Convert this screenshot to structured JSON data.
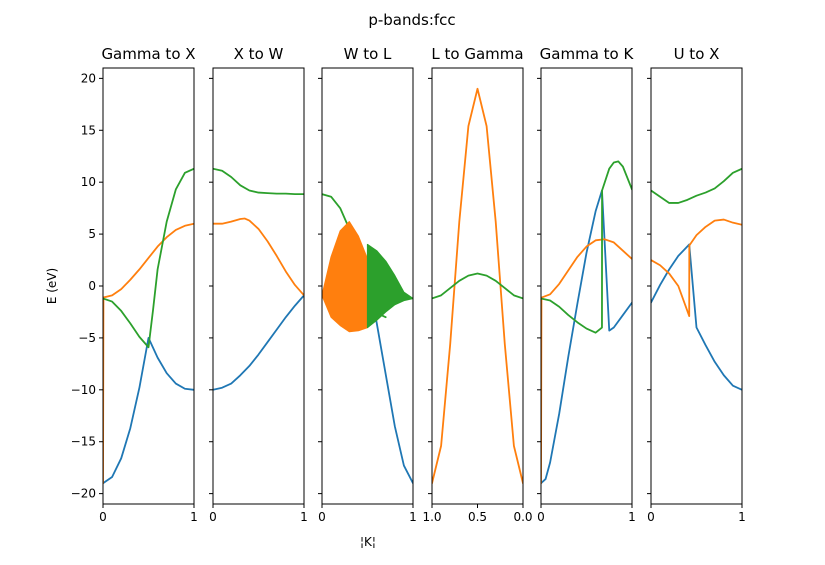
{
  "figure": {
    "suptitle": "p-bands:fcc",
    "xlabel": "¦K¦",
    "ylabel": "E (eV)"
  },
  "colors": {
    "band1": "#1f77b4",
    "band2": "#ff7f0e",
    "band3": "#2ca02c",
    "axes": "#000000",
    "background": "#ffffff"
  },
  "chart_data": [
    {
      "type": "line",
      "title": "Gamma to X",
      "xlim": [
        0,
        1
      ],
      "ylim": [
        -21,
        21
      ],
      "xticks": [
        0,
        1
      ],
      "yticks": [
        -20,
        -15,
        -10,
        -5,
        0,
        5,
        10,
        15,
        20
      ],
      "show_ytick_labels": true,
      "series": [
        {
          "color": "#1f77b4",
          "x": [
            0,
            0.1,
            0.2,
            0.3,
            0.4,
            0.5,
            0.6,
            0.7,
            0.8,
            0.9,
            1.0
          ],
          "y": [
            -19.0,
            -18.4,
            -16.6,
            -13.7,
            -9.8,
            -5.0,
            -6.9,
            -8.4,
            -9.4,
            -9.9,
            -10.0
          ]
        },
        {
          "color": "#ff7f0e",
          "x": [
            0,
            0.005,
            0.01,
            0.1,
            0.2,
            0.3,
            0.4,
            0.5,
            0.6,
            0.7,
            0.8,
            0.9,
            1.0
          ],
          "y": [
            -19.0,
            -1.2,
            -1.1,
            -0.9,
            -0.3,
            0.6,
            1.6,
            2.7,
            3.8,
            4.7,
            5.4,
            5.8,
            6.0
          ]
        },
        {
          "color": "#2ca02c",
          "x": [
            0,
            0.1,
            0.2,
            0.3,
            0.4,
            0.5,
            0.55,
            0.6,
            0.7,
            0.8,
            0.9,
            1.0
          ],
          "y": [
            -1.2,
            -1.5,
            -2.4,
            -3.6,
            -4.9,
            -5.9,
            -2.3,
            1.6,
            6.2,
            9.3,
            10.9,
            11.3
          ]
        }
      ]
    },
    {
      "type": "line",
      "title": "X to W",
      "xlim": [
        0,
        1
      ],
      "ylim": [
        -21,
        21
      ],
      "xticks": [
        0,
        1
      ],
      "yticks": [
        -20,
        -15,
        -10,
        -5,
        0,
        5,
        10,
        15,
        20
      ],
      "show_ytick_labels": false,
      "series": [
        {
          "color": "#1f77b4",
          "x": [
            0,
            0.1,
            0.2,
            0.3,
            0.4,
            0.5,
            0.6,
            0.7,
            0.8,
            0.9,
            1.0
          ],
          "y": [
            -10.0,
            -9.8,
            -9.4,
            -8.6,
            -7.7,
            -6.6,
            -5.4,
            -4.2,
            -3.0,
            -1.9,
            -0.9
          ]
        },
        {
          "color": "#ff7f0e",
          "x": [
            0,
            0.1,
            0.2,
            0.3,
            0.35,
            0.4,
            0.5,
            0.6,
            0.7,
            0.8,
            0.9,
            1.0
          ],
          "y": [
            6.0,
            6.0,
            6.2,
            6.45,
            6.5,
            6.3,
            5.5,
            4.3,
            2.9,
            1.4,
            0.1,
            -0.9
          ]
        },
        {
          "color": "#2ca02c",
          "x": [
            0,
            0.1,
            0.2,
            0.3,
            0.4,
            0.5,
            0.6,
            0.7,
            0.8,
            0.9,
            1.0
          ],
          "y": [
            11.3,
            11.1,
            10.5,
            9.7,
            9.2,
            9.0,
            8.95,
            8.9,
            8.9,
            8.85,
            8.85
          ]
        }
      ]
    },
    {
      "type": "line",
      "title": "W to L",
      "xlim": [
        0,
        1
      ],
      "ylim": [
        -21,
        21
      ],
      "xticks": [
        0,
        1
      ],
      "yticks": [
        -20,
        -15,
        -10,
        -5,
        0,
        5,
        10,
        15,
        20
      ],
      "show_ytick_labels": false,
      "series": [
        {
          "color": "#1f77b4",
          "x": [
            0,
            0.1,
            0.2,
            0.3,
            0.4,
            0.5,
            0.6,
            0.7,
            0.8,
            0.9,
            1.0
          ],
          "y": [
            -0.9,
            1.3,
            3.3,
            4.6,
            3.8,
            0.9,
            -3.5,
            -8.5,
            -13.5,
            -17.3,
            -19.0
          ]
        },
        {
          "color": "#2ca02c",
          "x": [
            0,
            0.1,
            0.2,
            0.3,
            0.4,
            0.5,
            0.6,
            0.7
          ],
          "y": [
            8.85,
            8.6,
            7.5,
            5.5,
            2.5,
            -1.0,
            -2.6,
            -3.0
          ]
        },
        {
          "color": "#ff7f0e",
          "x": [
            0,
            0.1,
            0.2,
            0.3,
            0.4,
            0.5
          ],
          "y": [
            -0.9,
            -3.0,
            -3.8,
            -4.4,
            -4.3,
            -4.0
          ],
          "fill_to": [
            -0.9,
            2.8,
            5.3,
            6.2,
            4.8,
            2.6
          ]
        },
        {
          "color": "#2ca02c",
          "x": [
            0.5,
            0.6,
            0.7,
            0.8,
            0.9,
            1.0
          ],
          "y": [
            -4.0,
            -3.3,
            -2.5,
            -1.8,
            -1.4,
            -1.2
          ],
          "fill_to": [
            4.0,
            3.4,
            2.4,
            1.0,
            -0.6,
            -1.2
          ]
        }
      ]
    },
    {
      "type": "line",
      "title": "L to Gamma",
      "xlim": [
        1.0,
        0.0
      ],
      "ylim": [
        -21,
        21
      ],
      "xticks": [
        1.0,
        0.5,
        0.0
      ],
      "xticklabels": [
        "1.0",
        "0.5",
        "0.0"
      ],
      "yticks": [
        -20,
        -15,
        -10,
        -5,
        0,
        5,
        10,
        15,
        20
      ],
      "show_ytick_labels": false,
      "series": [
        {
          "color": "#ff7f0e",
          "x": [
            1.0,
            0.9,
            0.8,
            0.7,
            0.6,
            0.5,
            0.4,
            0.3,
            0.2,
            0.1,
            0.0
          ],
          "y": [
            -19.0,
            -15.4,
            -5.6,
            6.2,
            15.4,
            19.0,
            15.4,
            6.2,
            -5.6,
            -15.4,
            -19.0
          ]
        },
        {
          "color": "#2ca02c",
          "x": [
            1.0,
            0.9,
            0.8,
            0.7,
            0.6,
            0.5,
            0.4,
            0.3,
            0.2,
            0.1,
            0.0
          ],
          "y": [
            -1.2,
            -0.9,
            -0.2,
            0.5,
            1.0,
            1.2,
            1.0,
            0.5,
            -0.2,
            -0.9,
            -1.2
          ]
        }
      ]
    },
    {
      "type": "line",
      "title": "Gamma to K",
      "xlim": [
        0,
        1
      ],
      "ylim": [
        -21,
        21
      ],
      "xticks": [
        0,
        1
      ],
      "yticks": [
        -20,
        -15,
        -10,
        -5,
        0,
        5,
        10,
        15,
        20
      ],
      "show_ytick_labels": false,
      "series": [
        {
          "color": "#1f77b4",
          "x": [
            0,
            0.05,
            0.1,
            0.2,
            0.3,
            0.4,
            0.5,
            0.6,
            0.67,
            0.75,
            0.8,
            0.9,
            1.0
          ],
          "y": [
            -19.0,
            -18.6,
            -17.0,
            -12.3,
            -6.8,
            -1.7,
            3.2,
            7.2,
            9.2,
            -4.3,
            -4.0,
            -2.8,
            -1.6
          ]
        },
        {
          "color": "#ff7f0e",
          "x": [
            0,
            0.005,
            0.01,
            0.1,
            0.2,
            0.3,
            0.4,
            0.5,
            0.6,
            0.7,
            0.8,
            0.9,
            1.0
          ],
          "y": [
            -19.0,
            -1.2,
            -1.1,
            -0.8,
            0.2,
            1.5,
            2.8,
            3.8,
            4.4,
            4.5,
            4.2,
            3.4,
            2.6
          ]
        },
        {
          "color": "#2ca02c",
          "x": [
            0,
            0.1,
            0.2,
            0.3,
            0.4,
            0.5,
            0.6,
            0.67,
            0.671,
            0.75,
            0.8,
            0.85,
            0.9,
            1.0
          ],
          "y": [
            -1.2,
            -1.4,
            -2.0,
            -2.8,
            -3.5,
            -4.1,
            -4.5,
            -4.0,
            9.2,
            11.3,
            11.9,
            12.0,
            11.5,
            9.3
          ]
        }
      ]
    },
    {
      "type": "line",
      "title": "U to X",
      "xlim": [
        0,
        1
      ],
      "ylim": [
        -21,
        21
      ],
      "xticks": [
        0,
        1
      ],
      "yticks": [
        -20,
        -15,
        -10,
        -5,
        0,
        5,
        10,
        15,
        20
      ],
      "show_ytick_labels": false,
      "series": [
        {
          "color": "#1f77b4",
          "x": [
            0,
            0.1,
            0.2,
            0.3,
            0.42,
            0.5,
            0.6,
            0.7,
            0.8,
            0.9,
            1.0
          ],
          "y": [
            -1.6,
            0.1,
            1.6,
            2.9,
            4.0,
            -4.0,
            -5.7,
            -7.3,
            -8.6,
            -9.6,
            -10.0
          ]
        },
        {
          "color": "#ff7f0e",
          "x": [
            0,
            0.1,
            0.2,
            0.3,
            0.42,
            0.421,
            0.5,
            0.6,
            0.7,
            0.8,
            0.9,
            1.0
          ],
          "y": [
            2.5,
            2.0,
            1.2,
            0.0,
            -2.9,
            3.9,
            4.9,
            5.7,
            6.3,
            6.4,
            6.1,
            5.9
          ]
        },
        {
          "color": "#2ca02c",
          "x": [
            0,
            0.1,
            0.2,
            0.3,
            0.4,
            0.5,
            0.6,
            0.7,
            0.8,
            0.9,
            1.0
          ],
          "y": [
            9.2,
            8.6,
            8.0,
            8.0,
            8.3,
            8.7,
            9.0,
            9.4,
            10.1,
            10.9,
            11.3
          ]
        }
      ]
    }
  ]
}
